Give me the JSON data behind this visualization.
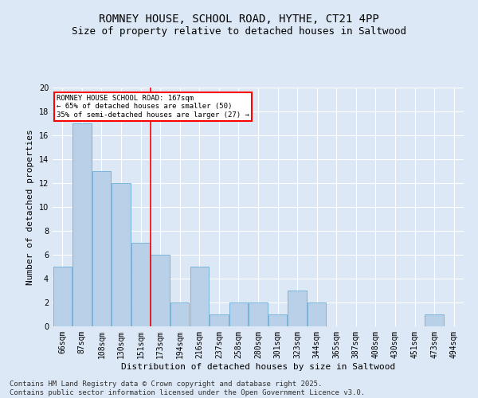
{
  "title_line1": "ROMNEY HOUSE, SCHOOL ROAD, HYTHE, CT21 4PP",
  "title_line2": "Size of property relative to detached houses in Saltwood",
  "xlabel": "Distribution of detached houses by size in Saltwood",
  "ylabel": "Number of detached properties",
  "categories": [
    "66sqm",
    "87sqm",
    "108sqm",
    "130sqm",
    "151sqm",
    "173sqm",
    "194sqm",
    "216sqm",
    "237sqm",
    "258sqm",
    "280sqm",
    "301sqm",
    "323sqm",
    "344sqm",
    "365sqm",
    "387sqm",
    "408sqm",
    "430sqm",
    "451sqm",
    "473sqm",
    "494sqm"
  ],
  "values": [
    5,
    17,
    13,
    12,
    7,
    6,
    2,
    5,
    1,
    2,
    2,
    1,
    3,
    2,
    0,
    0,
    0,
    0,
    0,
    1,
    0
  ],
  "bar_color": "#b8d0e8",
  "bar_edge_color": "#6baed6",
  "red_line_x": 5.0,
  "annotation_text": "ROMNEY HOUSE SCHOOL ROAD: 167sqm\n← 65% of detached houses are smaller (50)\n35% of semi-detached houses are larger (27) →",
  "annotation_box_color": "white",
  "annotation_box_edge": "red",
  "ylim": [
    0,
    20
  ],
  "yticks": [
    0,
    2,
    4,
    6,
    8,
    10,
    12,
    14,
    16,
    18,
    20
  ],
  "footer_line1": "Contains HM Land Registry data © Crown copyright and database right 2025.",
  "footer_line2": "Contains public sector information licensed under the Open Government Licence v3.0.",
  "background_color": "#dce8f5",
  "plot_bg_color": "#dce8f5",
  "grid_color": "#ffffff",
  "title_fontsize": 10,
  "subtitle_fontsize": 9,
  "axis_label_fontsize": 8,
  "tick_fontsize": 7,
  "annotation_fontsize": 6.5,
  "footer_fontsize": 6.5
}
